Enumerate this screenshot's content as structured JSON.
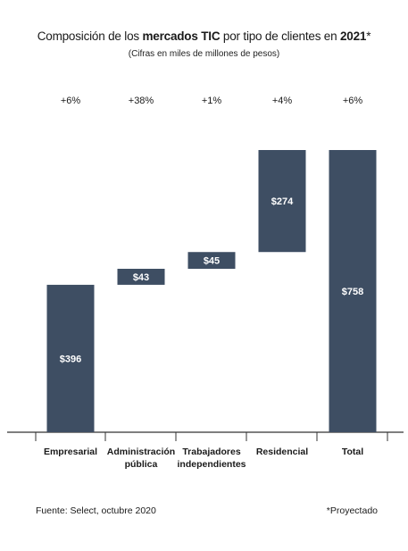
{
  "title": {
    "part1": "Composición de los ",
    "bold1": "mercados TIC",
    "part2": " por tipo de clientes en ",
    "bold2": "2021",
    "part3": "*"
  },
  "subtitle": "(Cifras en miles de millones de pesos)",
  "chart_data": {
    "type": "bar",
    "subtype": "waterfall",
    "categories": [
      "Empresarial",
      "Administración pública",
      "Trabajadores independientes",
      "Residencial",
      "Total"
    ],
    "category_lines": [
      [
        "Empresarial"
      ],
      [
        "Administración",
        "pública"
      ],
      [
        "Trabajadores",
        "independientes"
      ],
      [
        "Residencial"
      ],
      [
        "Total"
      ]
    ],
    "values": [
      396,
      43,
      45,
      274,
      758
    ],
    "value_labels": [
      "$396",
      "$43",
      "$45",
      "$274",
      "$758"
    ],
    "growth_labels": [
      "+6%",
      "+38%",
      "+1%",
      "+4%",
      "+6%"
    ],
    "bar_color": "#3e4e63",
    "value_label_color": "#ffffff",
    "ylim": [
      0,
      758
    ],
    "grid": false,
    "legend": "none"
  },
  "footer": {
    "source": "Fuente: Select, octubre 2020",
    "note": "*Proyectado"
  }
}
